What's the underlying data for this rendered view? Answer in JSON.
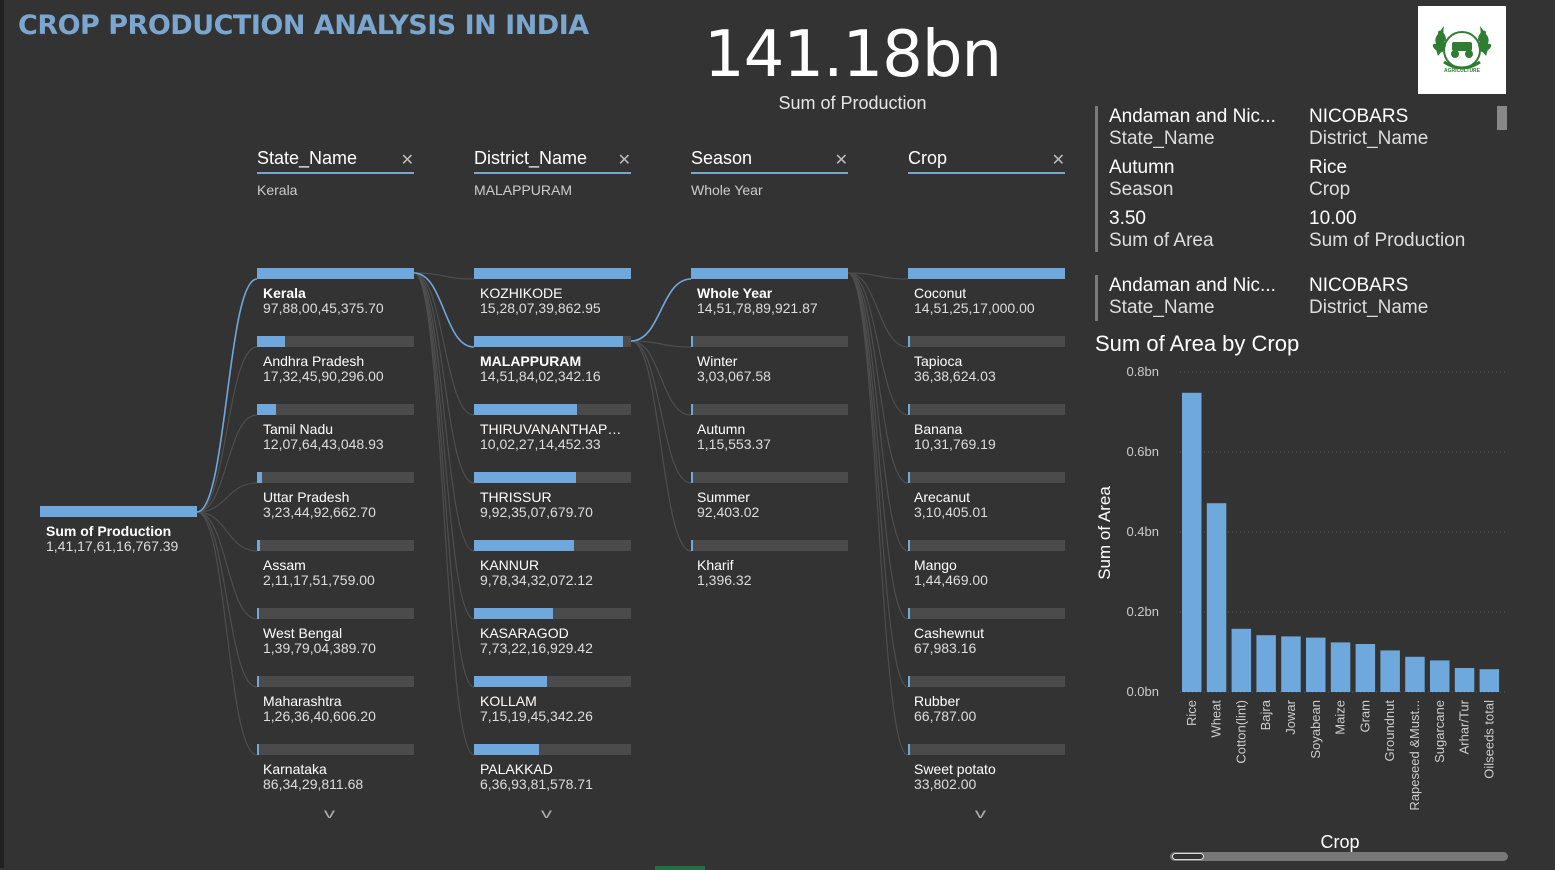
{
  "title": "CROP PRODUCTION ANALYSIS IN INDIA",
  "kpi": {
    "value": "141.18bn",
    "label": "Sum of Production"
  },
  "logo": {
    "icon": "agriculture-logo-icon",
    "text": "AGRICULTURE"
  },
  "tree": {
    "root": {
      "label": "Sum of Production",
      "value": "1,41,17,61,16,767.39"
    },
    "levels": [
      {
        "name": "State_Name",
        "selected": "Kerala",
        "nodes": [
          {
            "label": "Kerala",
            "value": "97,88,00,45,375.70",
            "fraction": 1.0,
            "selected": true
          },
          {
            "label": "Andhra Pradesh",
            "value": "17,32,45,90,296.00",
            "fraction": 0.177
          },
          {
            "label": "Tamil Nadu",
            "value": "12,07,64,43,048.93",
            "fraction": 0.123
          },
          {
            "label": "Uttar Pradesh",
            "value": "3,23,44,92,662.70",
            "fraction": 0.033
          },
          {
            "label": "Assam",
            "value": "2,11,17,51,759.00",
            "fraction": 0.022
          },
          {
            "label": "West Bengal",
            "value": "1,39,79,04,389.70",
            "fraction": 0.014
          },
          {
            "label": "Maharashtra",
            "value": "1,26,36,40,606.20",
            "fraction": 0.013
          },
          {
            "label": "Karnataka",
            "value": "86,34,29,811.68",
            "fraction": 0.009
          }
        ]
      },
      {
        "name": "District_Name",
        "selected": "MALAPPURAM",
        "nodes": [
          {
            "label": "KOZHIKODE",
            "value": "15,28,07,39,862.95",
            "fraction": 1.0
          },
          {
            "label": "MALAPPURAM",
            "value": "14,51,84,02,342.16",
            "fraction": 0.95,
            "selected": true
          },
          {
            "label": "THIRUVANANTHAPURAM",
            "value": "10,02,27,14,452.33",
            "fraction": 0.656
          },
          {
            "label": "THRISSUR",
            "value": "9,92,35,07,679.70",
            "fraction": 0.649
          },
          {
            "label": "KANNUR",
            "value": "9,78,34,32,072.12",
            "fraction": 0.64
          },
          {
            "label": "KASARAGOD",
            "value": "7,73,22,16,929.42",
            "fraction": 0.506
          },
          {
            "label": "KOLLAM",
            "value": "7,15,19,45,342.26",
            "fraction": 0.468
          },
          {
            "label": "PALAKKAD",
            "value": "6,36,93,81,578.71",
            "fraction": 0.417
          }
        ]
      },
      {
        "name": "Season",
        "selected": "Whole Year",
        "nodes": [
          {
            "label": "Whole Year",
            "value": "14,51,78,89,921.87",
            "fraction": 1.0,
            "selected": true
          },
          {
            "label": "Winter",
            "value": "3,03,067.58",
            "fraction": 0.0
          },
          {
            "label": "Autumn",
            "value": "1,15,553.37",
            "fraction": 0.0
          },
          {
            "label": "Summer",
            "value": "92,403.02",
            "fraction": 0.0
          },
          {
            "label": "Kharif",
            "value": "1,396.32",
            "fraction": 0.0
          }
        ]
      },
      {
        "name": "Crop",
        "selected": "",
        "nodes": [
          {
            "label": "Coconut",
            "value": "14,51,25,17,000.00",
            "fraction": 1.0
          },
          {
            "label": "Tapioca",
            "value": "36,38,624.03",
            "fraction": 0.0
          },
          {
            "label": "Banana",
            "value": "10,31,769.19",
            "fraction": 0.0
          },
          {
            "label": "Arecanut",
            "value": "3,10,405.01",
            "fraction": 0.0
          },
          {
            "label": "Mango",
            "value": "1,44,469.00",
            "fraction": 0.0
          },
          {
            "label": "Cashewnut",
            "value": "67,983.16",
            "fraction": 0.0
          },
          {
            "label": "Rubber",
            "value": "66,787.00",
            "fraction": 0.0
          },
          {
            "label": "Sweet potato",
            "value": "33,802.00",
            "fraction": 0.0
          }
        ]
      }
    ]
  },
  "card1": [
    {
      "value": "Andaman and Nic...",
      "label": "State_Name"
    },
    {
      "value": "NICOBARS",
      "label": "District_Name"
    },
    {
      "value": "Autumn",
      "label": "Season"
    },
    {
      "value": "Rice",
      "label": "Crop"
    },
    {
      "value": "3.50",
      "label": "Sum of Area"
    },
    {
      "value": "10.00",
      "label": "Sum of Production"
    }
  ],
  "card2": [
    {
      "value": "Andaman and Nic...",
      "label": "State_Name"
    },
    {
      "value": "NICOBARS",
      "label": "District_Name"
    }
  ],
  "chart_data": {
    "type": "bar",
    "title": "Sum of Area by Crop",
    "xlabel": "Crop",
    "ylabel": "Sum of Area",
    "categories": [
      "Rice",
      "Wheat",
      "Cotton(lint)",
      "Bajra",
      "Jowar",
      "Soyabean",
      "Maize",
      "Gram",
      "Groundnut",
      "Rapeseed &Must...",
      "Sugarcane",
      "Arhar/Tur",
      "Oilseeds total"
    ],
    "values": [
      0.748,
      0.472,
      0.158,
      0.142,
      0.139,
      0.136,
      0.124,
      0.12,
      0.104,
      0.088,
      0.079,
      0.06,
      0.057
    ],
    "unit": "bn",
    "yticks": [
      "0.0bn",
      "0.2bn",
      "0.4bn",
      "0.6bn",
      "0.8bn"
    ],
    "ylim": [
      0,
      0.8
    ],
    "grid": true,
    "color": "#6FA8DC"
  }
}
